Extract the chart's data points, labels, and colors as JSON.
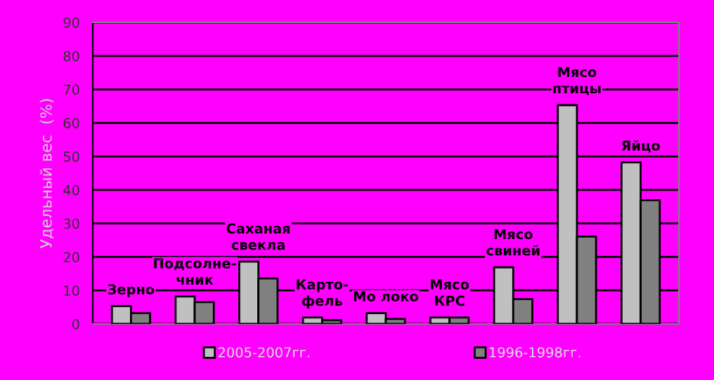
{
  "chart_data": {
    "type": "bar",
    "ylabel": "Удельный вес  (%)",
    "categories": [
      "Зерно",
      "Подсолне-\nчник",
      "Саханая\nсвекла",
      "Карто-\nфель",
      "Мо локо",
      "Мясо\nКРС",
      "Мясо\nсвиней",
      "Мясо\nптицы",
      "Яйцо"
    ],
    "series": [
      {
        "name": "2005-2007гг.",
        "color": "#c0c0c0",
        "values": [
          5.3,
          8.2,
          18.6,
          1.9,
          3.2,
          1.9,
          16.9,
          65.3,
          48.2
        ]
      },
      {
        "name": "1996-1998гг.",
        "color": "#808080",
        "values": [
          3.2,
          6.5,
          13.6,
          1.1,
          1.5,
          1.9,
          7.4,
          26.1,
          36.9
        ]
      }
    ],
    "ylim": [
      0,
      90
    ],
    "yticks": [
      0,
      10,
      20,
      30,
      40,
      50,
      60,
      70,
      80,
      90
    ],
    "grid": "y",
    "legend": "bottom"
  }
}
